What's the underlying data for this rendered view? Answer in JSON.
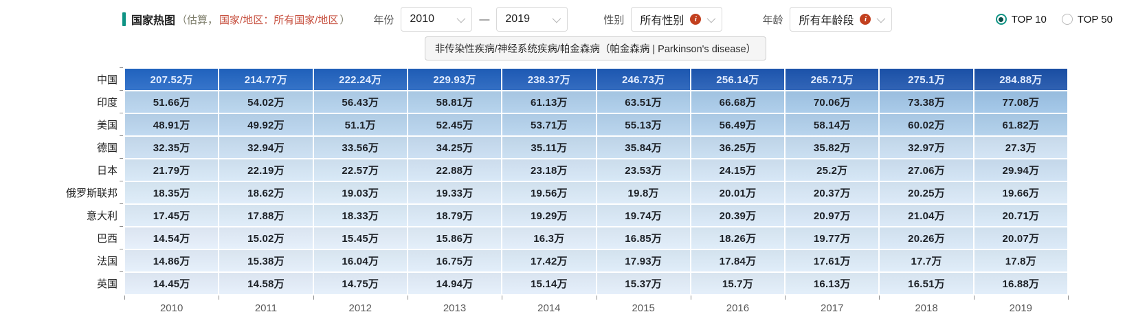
{
  "colors": {
    "accent_teal": "#0e9384",
    "region_red": "#c75140",
    "info_icon_bg": "#c2401f"
  },
  "header": {
    "title": "国家热图",
    "paren_open": "（估算，",
    "region_text": "国家/地区：所有国家/地区",
    "paren_close": "）"
  },
  "filters": {
    "year_label": "年份",
    "year_from": "2010",
    "year_to": "2019",
    "dash": "—",
    "gender_label": "性别",
    "gender_value": "所有性别",
    "age_label": "年龄",
    "age_value": "所有年龄段",
    "info_glyph": "i"
  },
  "toggle": {
    "options": [
      {
        "label": "TOP 10",
        "selected": true
      },
      {
        "label": "TOP 50",
        "selected": false
      }
    ]
  },
  "disease_path": "非传染性疾病/神经系统疾病/帕金森病（帕金森病 | Parkinson's disease）",
  "chart_data": {
    "type": "heatmap",
    "unit": "万",
    "x": [
      "2010",
      "2011",
      "2012",
      "2013",
      "2014",
      "2015",
      "2016",
      "2017",
      "2018",
      "2019"
    ],
    "rows": [
      {
        "name": "中国",
        "values": [
          207.52,
          214.77,
          222.24,
          229.93,
          238.37,
          246.73,
          256.14,
          265.71,
          275.1,
          284.88
        ]
      },
      {
        "name": "印度",
        "values": [
          51.66,
          54.02,
          56.43,
          58.81,
          61.13,
          63.51,
          66.68,
          70.06,
          73.38,
          77.08
        ]
      },
      {
        "name": "美国",
        "values": [
          48.91,
          49.92,
          51.1,
          52.45,
          53.71,
          55.13,
          56.49,
          58.14,
          60.02,
          61.82
        ]
      },
      {
        "name": "德国",
        "values": [
          32.35,
          32.94,
          33.56,
          34.25,
          35.11,
          35.84,
          36.25,
          35.82,
          32.97,
          27.3
        ]
      },
      {
        "name": "日本",
        "values": [
          21.79,
          22.19,
          22.57,
          22.88,
          23.18,
          23.53,
          24.15,
          25.2,
          27.06,
          29.94
        ]
      },
      {
        "name": "俄罗斯联邦",
        "values": [
          18.35,
          18.62,
          19.03,
          19.33,
          19.56,
          19.8,
          20.01,
          20.37,
          20.25,
          19.66
        ]
      },
      {
        "name": "意大利",
        "values": [
          17.45,
          17.88,
          18.33,
          18.79,
          19.29,
          19.74,
          20.39,
          20.97,
          21.04,
          20.71
        ]
      },
      {
        "name": "巴西",
        "values": [
          14.54,
          15.02,
          15.45,
          15.86,
          16.3,
          16.85,
          18.26,
          19.77,
          20.26,
          20.07
        ]
      },
      {
        "name": "法国",
        "values": [
          14.86,
          15.38,
          16.04,
          16.75,
          17.42,
          17.93,
          17.84,
          17.61,
          17.7,
          17.8
        ]
      },
      {
        "name": "英国",
        "values": [
          14.45,
          14.58,
          14.75,
          14.94,
          15.14,
          15.37,
          15.7,
          16.13,
          16.51,
          16.88
        ]
      }
    ],
    "color_scale": {
      "stops": [
        [
          14.45,
          "#e4eefa"
        ],
        [
          18,
          "#dcebf8"
        ],
        [
          22,
          "#d5e6f6"
        ],
        [
          33,
          "#c8def2"
        ],
        [
          52,
          "#b6d3ed"
        ],
        [
          77,
          "#9cc3e6"
        ],
        [
          207,
          "#2166c5"
        ],
        [
          285,
          "#1a50a9"
        ]
      ],
      "light_text_threshold": 100,
      "light_text_color": "#e3edff",
      "dark_text_color": "#1d2127"
    },
    "legend": "none",
    "grid": "off"
  }
}
